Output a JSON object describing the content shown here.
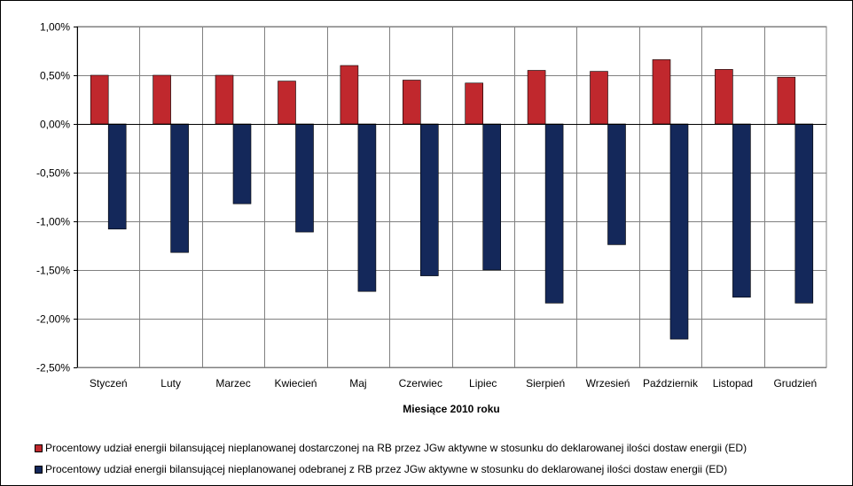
{
  "chart_data": {
    "type": "bar",
    "categories": [
      "Styczeń",
      "Luty",
      "Marzec",
      "Kwiecień",
      "Maj",
      "Czerwiec",
      "Lipiec",
      "Sierpień",
      "Wrzesień",
      "Październik",
      "Listopad",
      "Grudzień"
    ],
    "series": [
      {
        "name": "Procentowy udział energii bilansującej nieplanowanej dostarczonej na RB przez JGw aktywne w stosunku do deklarowanej ilości dostaw energii (ED)",
        "color": "#C0282D",
        "values": [
          0.5,
          0.5,
          0.5,
          0.44,
          0.6,
          0.45,
          0.42,
          0.55,
          0.54,
          0.66,
          0.56,
          0.48
        ]
      },
      {
        "name": "Procentowy udział energii bilansującej nieplanowanej odebranej z RB przez JGw aktywne w stosunku do deklarowanej ilości dostaw energii (ED)",
        "color": "#14285A",
        "values": [
          -1.08,
          -1.32,
          -0.82,
          -1.11,
          -1.72,
          -1.56,
          -1.5,
          -1.84,
          -1.24,
          -2.21,
          -1.78,
          -1.84
        ]
      }
    ],
    "xlabel": "Miesiące 2010  roku",
    "ylabel": "",
    "ylim": [
      -2.5,
      1.0
    ],
    "ytick_values": [
      1.0,
      0.5,
      0.0,
      -0.5,
      -1.0,
      -1.5,
      -2.0,
      -2.5
    ],
    "ytick_labels": [
      "1,00%",
      "0,50%",
      "0,00%",
      "-0,50%",
      "-1,00%",
      "-1,50%",
      "-2,00%",
      "-2,50%"
    ],
    "grid": true,
    "legend_position": "bottom"
  }
}
